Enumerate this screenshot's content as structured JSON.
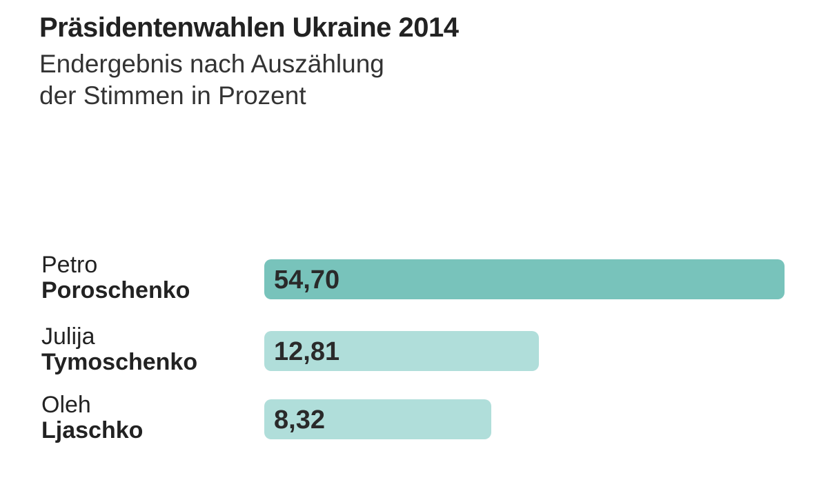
{
  "chart_data": {
    "type": "bar",
    "orientation": "horizontal",
    "title": "Präsidentenwahlen Ukraine 2014",
    "subtitle": [
      "Endergebnis nach Auszählung",
      "der Stimmen in Prozent"
    ],
    "categories": [
      {
        "first": "Petro",
        "last": "Poroschenko"
      },
      {
        "first": "Julija",
        "last": "Tymoschenko"
      },
      {
        "first": "Oleh",
        "last": "Ljaschko"
      }
    ],
    "values": [
      54.7,
      12.81,
      8.32
    ],
    "value_labels": [
      "54,70",
      "12,81",
      "8,32"
    ],
    "colors": [
      "#78c3bb",
      "#b0deda",
      "#b0deda"
    ]
  }
}
